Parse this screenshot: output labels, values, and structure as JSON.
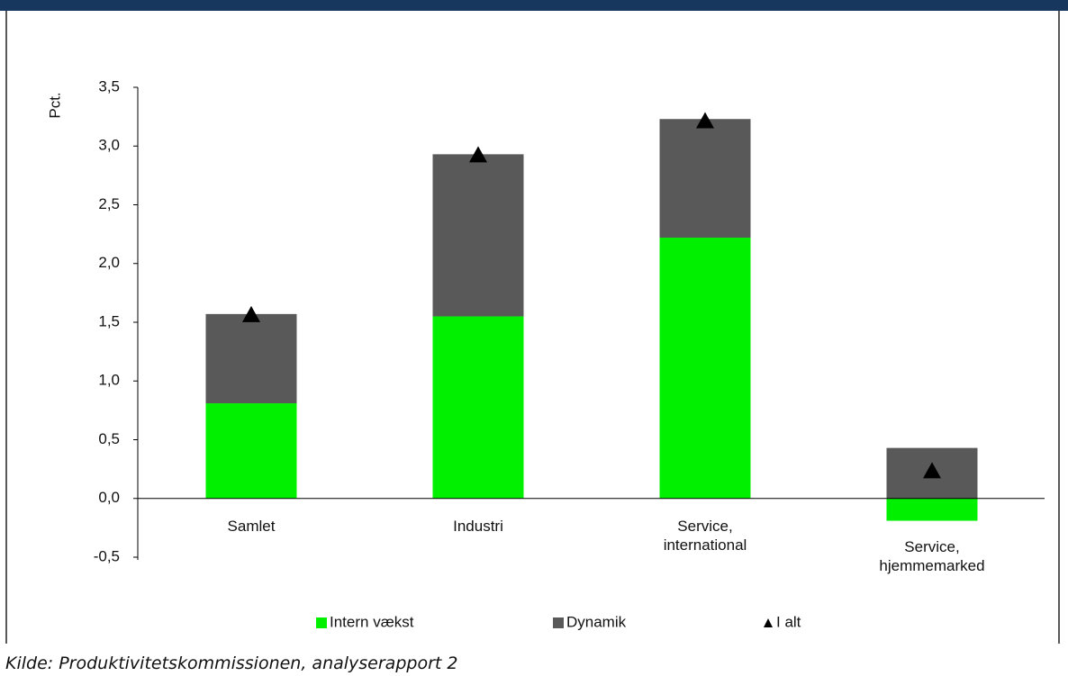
{
  "chart_data": {
    "type": "bar",
    "stacked": true,
    "ylabel": "Pct.",
    "categories": [
      "Samlet",
      "Industri",
      "Service,\ninternational",
      "Service,\nhjemmemarked"
    ],
    "series": [
      {
        "name": "Intern vækst",
        "color": "#00f000",
        "values": [
          0.81,
          1.55,
          2.22,
          -0.19
        ]
      },
      {
        "name": "Dynamik",
        "color": "#595959",
        "values": [
          0.76,
          1.38,
          1.01,
          0.43
        ]
      },
      {
        "name": "I alt",
        "color": "#000000",
        "marker": "triangle",
        "values": [
          1.57,
          2.93,
          3.22,
          0.24
        ]
      }
    ],
    "ylim": [
      -0.5,
      3.5
    ],
    "yticks": [
      {
        "value": -0.5,
        "label": "-0,5"
      },
      {
        "value": 0,
        "label": "0,0"
      },
      {
        "value": 0.5,
        "label": "0,5"
      },
      {
        "value": 1,
        "label": "1,0"
      },
      {
        "value": 1.5,
        "label": "1,5"
      },
      {
        "value": 2,
        "label": "2,0"
      },
      {
        "value": 2.5,
        "label": "2,5"
      },
      {
        "value": 3,
        "label": "3,0"
      },
      {
        "value": 3.5,
        "label": "3,5"
      }
    ],
    "source": "Kilde: Produktivitetskommissionen, analyserapport 2"
  }
}
